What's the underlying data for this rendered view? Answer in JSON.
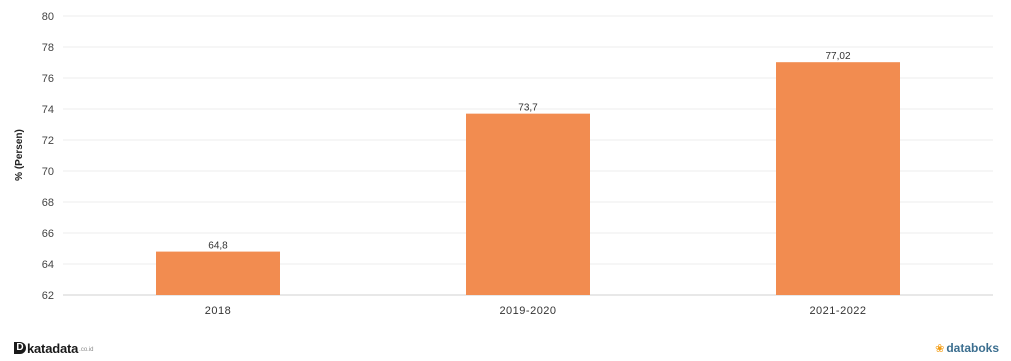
{
  "chart_data": {
    "type": "bar",
    "categories": [
      "2018",
      "2019-2020",
      "2021-2022"
    ],
    "values": [
      64.8,
      73.7,
      77.02
    ],
    "value_labels": [
      "64,8",
      "73,7",
      "77,02"
    ],
    "ylabel": "% (Persen)",
    "ylim": [
      62,
      80
    ],
    "yticks": [
      62,
      64,
      66,
      68,
      70,
      72,
      74,
      76,
      78,
      80
    ],
    "grid": true,
    "bar_color": "#f28c50"
  },
  "footer": {
    "left_logo_mark": "D",
    "left_logo_text": "katadata",
    "left_logo_suffix": ".co.id",
    "right_logo_text": "databoks",
    "right_logo_color": "#3b6e8f"
  }
}
